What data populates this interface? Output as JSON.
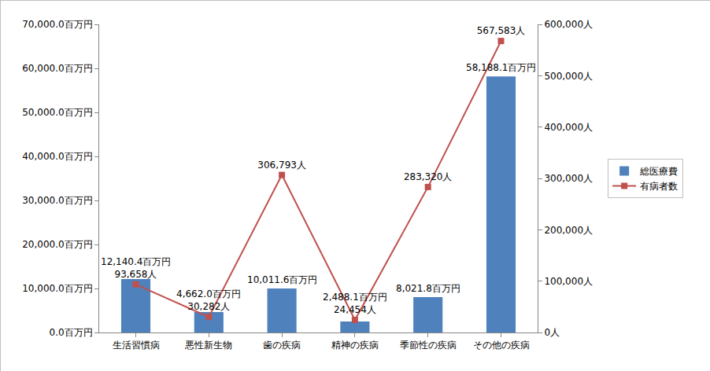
{
  "chart_data": {
    "type": "bar",
    "categories": [
      "生活習慣病",
      "悪性新生物",
      "歯の疾病",
      "精神の疾病",
      "季節性の疾病",
      "その他の疾病"
    ],
    "series": [
      {
        "name": "総医療費",
        "type": "bar",
        "color": "#4f81bd",
        "values": [
          12140.4,
          4662.0,
          10011.6,
          2488.1,
          8021.8,
          58188.1
        ],
        "value_labels": [
          "12,140.4百万円",
          "4,662.0百万円",
          "10,011.6百万円",
          "2,488.1百万円",
          "8,021.8百万円",
          "58,188.1百万円"
        ]
      },
      {
        "name": "有病者数",
        "type": "line",
        "axis": "y2",
        "color": "#c0504d",
        "marker": "square",
        "values": [
          93658,
          30282,
          306793,
          24454,
          283320,
          567583
        ],
        "value_labels": [
          "93,658人",
          "30,282人",
          "306,793人",
          "24,454人",
          "283,320人",
          "567,583人"
        ]
      }
    ],
    "ylim": [
      0,
      70000
    ],
    "yticks": [
      {
        "value": 0,
        "label": "0.0百万円"
      },
      {
        "value": 10000,
        "label": "10,000.0百万円"
      },
      {
        "value": 20000,
        "label": "20,000.0百万円"
      },
      {
        "value": 30000,
        "label": "30,000.0百万円"
      },
      {
        "value": 40000,
        "label": "40,000.0百万円"
      },
      {
        "value": 50000,
        "label": "50,000.0百万円"
      },
      {
        "value": 60000,
        "label": "60,000.0百万円"
      },
      {
        "value": 70000,
        "label": "70,000.0百万円"
      }
    ],
    "y2lim": [
      0,
      600000
    ],
    "y2ticks": [
      {
        "value": 0,
        "label": "0人"
      },
      {
        "value": 100000,
        "label": "100,000人"
      },
      {
        "value": 200000,
        "label": "200,000人"
      },
      {
        "value": 300000,
        "label": "300,000人"
      },
      {
        "value": 400000,
        "label": "400,000人"
      },
      {
        "value": 500000,
        "label": "500,000人"
      },
      {
        "value": 600000,
        "label": "600,000人"
      }
    ],
    "grid": false,
    "legend": "right",
    "data_labels": true
  }
}
